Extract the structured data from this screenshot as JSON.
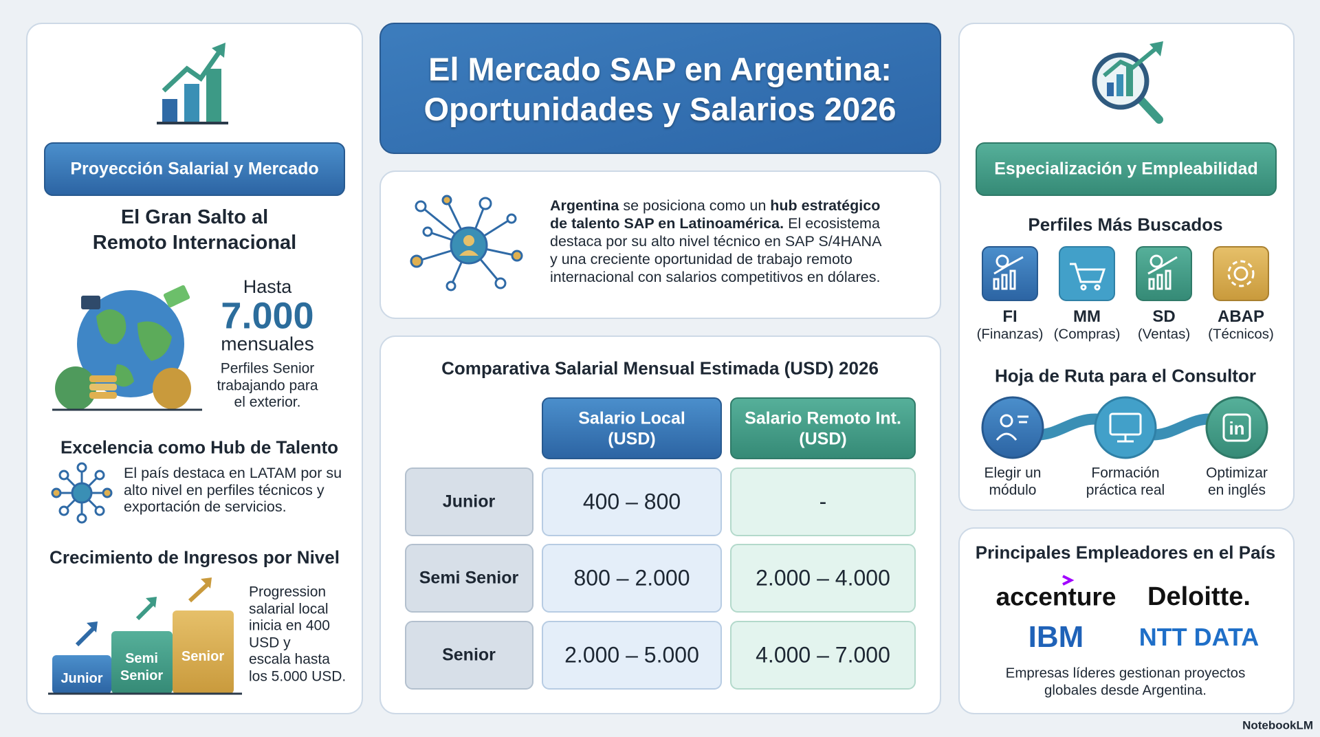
{
  "header": {
    "title_lines": [
      "El Mercado SAP en Argentina:",
      "Oportunidades y Salarios 2026"
    ]
  },
  "salary_panel": {
    "badge": "Proyección Salarial y Mercado",
    "remote_heading_lines": [
      "El Gran Salto al",
      "Remoto Internacional"
    ],
    "remote_prefix": "Hasta",
    "remote_amount": "7.000",
    "remote_unit": "mensuales",
    "remote_note_lines": [
      "Perfiles Senior",
      "trabajando para",
      "el exterior."
    ],
    "hub_heading": "Excelencia como Hub de Talento",
    "hub_text_lines": [
      "El país destaca en LATAM por su",
      "alto nivel en perfiles técnicos y",
      "exportación de servicios."
    ],
    "growth_heading": "Crecimiento de Ingresos por Nivel",
    "growth_steps": [
      [
        "Junior"
      ],
      [
        "Semi",
        "Senior"
      ],
      [
        "Senior"
      ]
    ],
    "growth_text_lines": [
      "Progression",
      "salarial local",
      "inicia en 400",
      "USD y",
      "escala hasta",
      "los 5.000 USD."
    ]
  },
  "intro": {
    "lines": [
      [
        {
          "text": "Argentina",
          "bold": true
        },
        {
          "text": " se posiciona como un "
        },
        {
          "text": "hub estratégico",
          "bold": true
        }
      ],
      [
        {
          "text": "de talento SAP en Latinoamérica.",
          "bold": true
        },
        {
          "text": " El ecosistema"
        }
      ],
      [
        {
          "text": "destaca por su alto nivel técnico en SAP S/4HANA"
        }
      ],
      [
        {
          "text": "y una creciente oportunidad de trabajo remoto"
        }
      ],
      [
        {
          "text": "internacional con salarios competitivos en dólares."
        }
      ]
    ]
  },
  "table": {
    "title": "Comparativa Salarial Mensual Estimada (USD) 2026",
    "column_lines": [
      [
        "Salario Local",
        "(USD)"
      ],
      [
        "Salario Remoto Int.",
        "(USD)"
      ]
    ],
    "rows": [
      [
        "Junior",
        "400 – 800",
        "-"
      ],
      [
        "Semi Senior",
        "800 – 2.000",
        "2.000 – 4.000"
      ],
      [
        "Senior",
        "2.000 – 5.000",
        "4.000 – 7.000"
      ]
    ]
  },
  "specialization": {
    "badge": "Especialización y Empleabilidad",
    "profiles_heading": "Perfiles Más Buscados",
    "profiles": [
      {
        "name": "FI",
        "detail": "(Finanzas)"
      },
      {
        "name": "MM",
        "detail": "(Compras)"
      },
      {
        "name": "SD",
        "detail": "(Ventas)"
      },
      {
        "name": "ABAP",
        "detail": "(Técnicos)"
      }
    ],
    "roadmap_heading": "Hoja de Ruta para el Consultor",
    "roadmap_steps": [
      [
        "Elegir un",
        "módulo"
      ],
      [
        "Formación",
        "práctica real"
      ],
      [
        "Optimizar",
        "en inglés"
      ]
    ]
  },
  "employers": {
    "heading": "Principales Empleadores en el País",
    "logos": [
      "accenture",
      "Deloitte.",
      "IBM",
      "NTT DATA"
    ],
    "caption_lines": [
      "Empresas líderes gestionan proyectos",
      "globales desde Argentina."
    ]
  },
  "footer": {
    "brand": "NotebookLM"
  }
}
